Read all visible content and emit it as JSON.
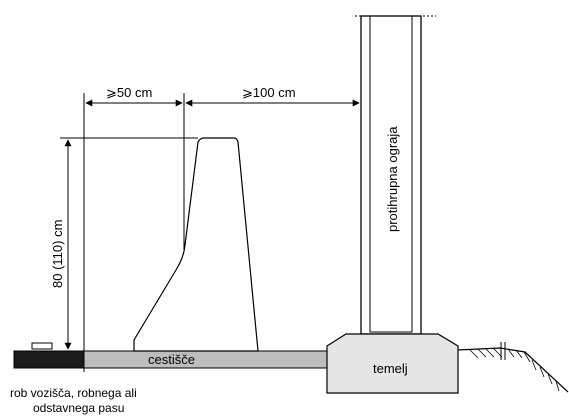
{
  "dimensions": {
    "width_offset_label": "⩾50 cm",
    "width_wall_label": "⩾100 cm",
    "height_label": "80 (110) cm"
  },
  "labels": {
    "noise_barrier": "protihrupna ograja",
    "shoulder": "cestišče",
    "foundation": "temelj",
    "edge_line_1": "rob vozišča, robnega ali",
    "edge_line_2": "odstavnega pasu"
  },
  "colors": {
    "road_edge": "#1a1a1a",
    "shoulder_fill": "#bdbdbd",
    "foundation_fill": "#e6e6e6",
    "line": "#000000"
  }
}
